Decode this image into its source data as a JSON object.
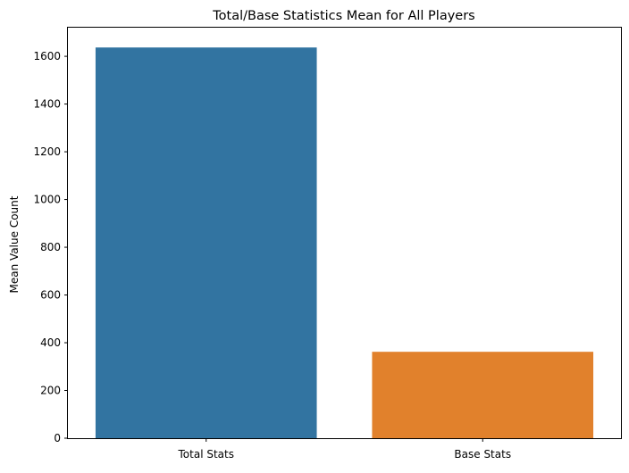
{
  "chart_data": {
    "type": "bar",
    "title": "Total/Base Statistics Mean for All Players",
    "xlabel": "",
    "ylabel": "Mean Value Count",
    "categories": [
      "Total Stats",
      "Base Stats"
    ],
    "values": [
      1637,
      362
    ],
    "colors": [
      "#3274a1",
      "#e1812c"
    ],
    "ylim": [
      0,
      1720
    ],
    "yticks": [
      0,
      200,
      400,
      600,
      800,
      1000,
      1200,
      1400,
      1600
    ],
    "grid": false,
    "legend": "none"
  }
}
